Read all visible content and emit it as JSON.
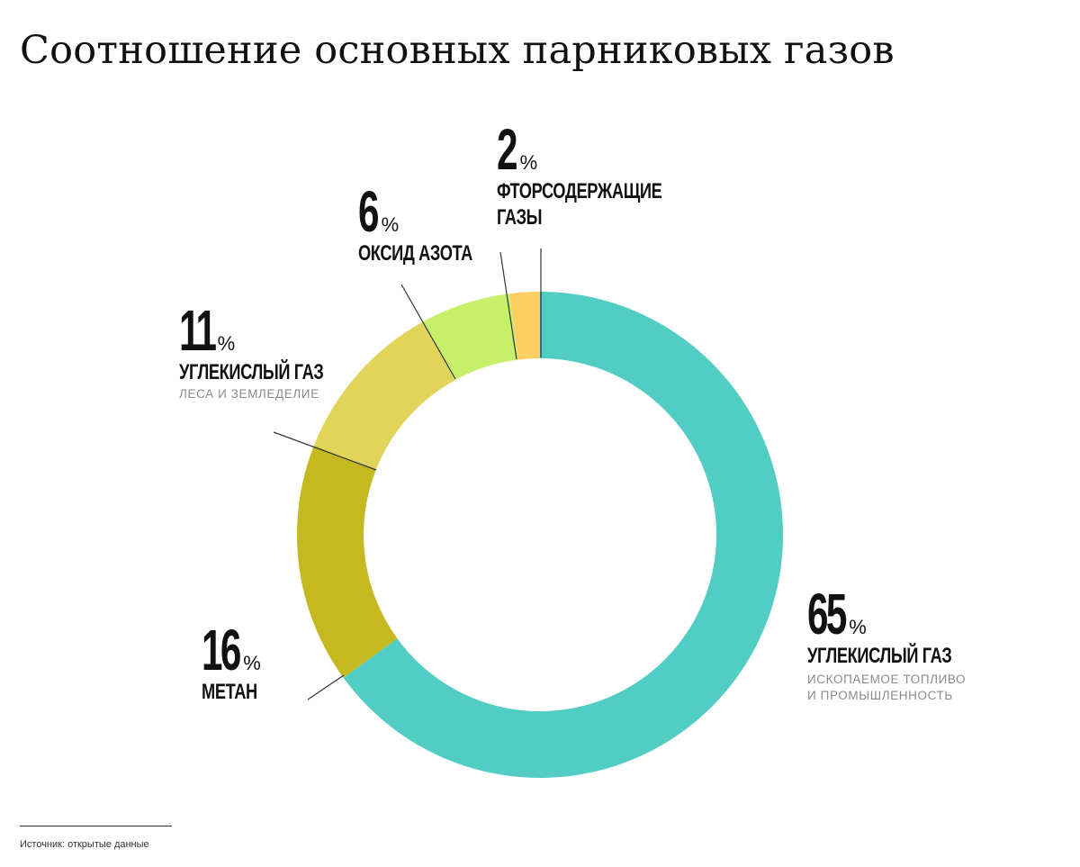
{
  "title": "Соотношение основных парниковых газов",
  "chart_data": {
    "type": "pie",
    "variant": "donut",
    "title": "Соотношение основных парниковых газов",
    "unit": "%",
    "slices": [
      {
        "value": 65,
        "label": "УГЛЕКИСЛЫЙ ГАЗ",
        "sublabel": "ИСКОПАЕМОЕ ТОПЛИВО\nИ ПРОМЫШЛЕННОСТЬ",
        "color": "#52cdc4"
      },
      {
        "value": 16,
        "label": "МЕТАН",
        "sublabel": "",
        "color": "#c5b921"
      },
      {
        "value": 11,
        "label": "УГЛЕКИСЛЫЙ ГАЗ",
        "sublabel": "ЛЕСА И ЗЕМЛЕДЕЛИЕ",
        "color": "#e0d55a"
      },
      {
        "value": 6,
        "label": "ОКСИД АЗОТА",
        "sublabel": "",
        "color": "#c7f06a"
      },
      {
        "value": 2,
        "label": "ФТОРСОДЕРЖАЩИЕ\nГАЗЫ",
        "sublabel": "",
        "color": "#fccf63"
      }
    ],
    "legend": "none"
  },
  "percent_sign": "%",
  "footer": {
    "source": "Источник: открытые данные"
  }
}
